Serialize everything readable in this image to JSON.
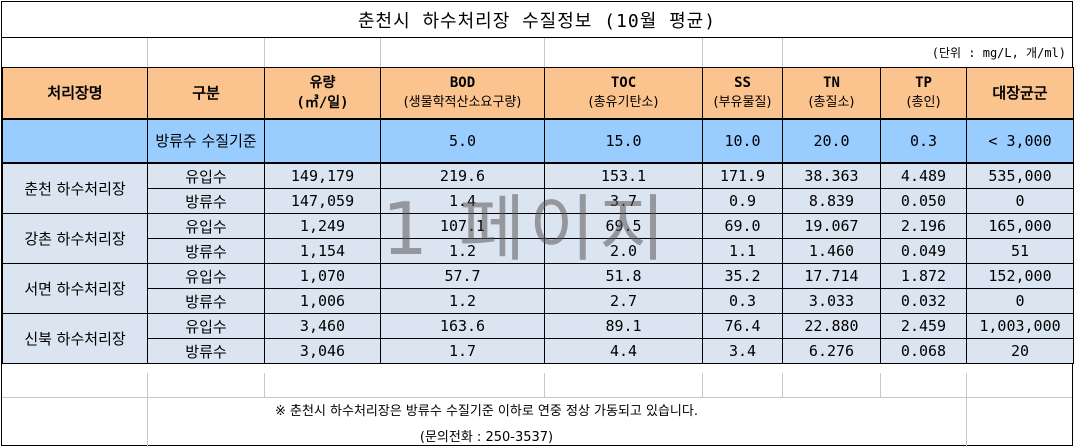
{
  "title": "춘천시 하수처리장 수질정보 (10월 평균)",
  "unit_note": "(단위 : mg/L, 개/ml)",
  "headers": {
    "plant": "처리장명",
    "kind": "구분",
    "flow": "유량",
    "flow_unit": "(㎥/일)",
    "bod": "BOD",
    "bod_sub": "(생물학적산소요구량)",
    "toc": "TOC",
    "toc_sub": "(총유기탄소)",
    "ss": "SS",
    "ss_sub": "(부유물질)",
    "tn": "TN",
    "tn_sub": "(총질소)",
    "tp": "TP",
    "tp_sub": "(총인)",
    "coliform": "대장균군"
  },
  "standard": {
    "label": "방류수 수질기준",
    "flow": "",
    "bod": "5.0",
    "toc": "15.0",
    "ss": "10.0",
    "tn": "20.0",
    "tp": "0.3",
    "coliform": "< 3,000"
  },
  "plants": [
    {
      "name": "춘천 하수처리장",
      "rows": [
        {
          "kind": "유입수",
          "flow": "149,179",
          "bod": "219.6",
          "toc": "153.1",
          "ss": "171.9",
          "tn": "38.363",
          "tp": "4.489",
          "coliform": "535,000"
        },
        {
          "kind": "방류수",
          "flow": "147,059",
          "bod": "1.4",
          "toc": "3.7",
          "ss": "0.9",
          "tn": "8.839",
          "tp": "0.050",
          "coliform": "0"
        }
      ]
    },
    {
      "name": "강촌 하수처리장",
      "rows": [
        {
          "kind": "유입수",
          "flow": "1,249",
          "bod": "107.1",
          "toc": "69.5",
          "ss": "69.0",
          "tn": "19.067",
          "tp": "2.196",
          "coliform": "165,000"
        },
        {
          "kind": "방류수",
          "flow": "1,154",
          "bod": "1.2",
          "toc": "2.0",
          "ss": "1.1",
          "tn": "1.460",
          "tp": "0.049",
          "coliform": "51"
        }
      ]
    },
    {
      "name": "서면 하수처리장",
      "rows": [
        {
          "kind": "유입수",
          "flow": "1,070",
          "bod": "57.7",
          "toc": "51.8",
          "ss": "35.2",
          "tn": "17.714",
          "tp": "1.872",
          "coliform": "152,000"
        },
        {
          "kind": "방류수",
          "flow": "1,006",
          "bod": "1.2",
          "toc": "2.7",
          "ss": "0.3",
          "tn": "3.033",
          "tp": "0.032",
          "coliform": "0"
        }
      ]
    },
    {
      "name": "신북 하수처리장",
      "rows": [
        {
          "kind": "유입수",
          "flow": "3,460",
          "bod": "163.6",
          "toc": "89.1",
          "ss": "76.4",
          "tn": "22.880",
          "tp": "2.459",
          "coliform": "1,003,000"
        },
        {
          "kind": "방류수",
          "flow": "3,046",
          "bod": "1.7",
          "toc": "4.4",
          "ss": "3.4",
          "tn": "6.276",
          "tp": "0.068",
          "coliform": "20"
        }
      ]
    }
  ],
  "watermark": "1 페이지",
  "footnote": "※ 춘천시 하수처리장은 방류수 수질기준 이하로 연중 정상 가동되고 있습니다.",
  "contact": "(문의전화 : 250-3537)",
  "colors": {
    "header_bg": "#fbc48f",
    "standard_bg": "#99ccff",
    "row_bg": "#dbe5f1"
  }
}
